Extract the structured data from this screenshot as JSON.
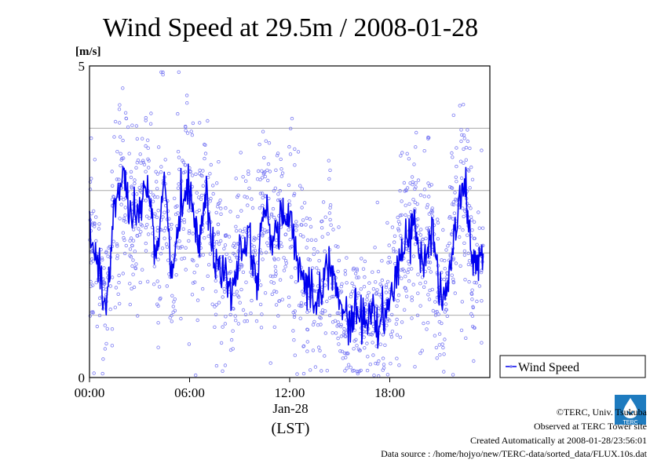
{
  "chart_data": {
    "type": "line",
    "title": "Wind Speed at 29.5m / 2008-01-28",
    "ylabel": "[m/s]",
    "xlabel": "(LST)",
    "date_label": "Jan-28",
    "ylim": [
      0,
      5
    ],
    "y_ticks": [
      0,
      5
    ],
    "y_gridlines": [
      1,
      2,
      3,
      4
    ],
    "x_ticks": [
      "00:00",
      "06:00",
      "12:00",
      "18:00"
    ],
    "xlim_hours": [
      0,
      24
    ],
    "grid": true,
    "legend_placement": "bottom-right-outside",
    "series": [
      {
        "name": "Wind Speed",
        "color": "#0000ee",
        "scatter_color": "#7b7bf3",
        "x": [
          0,
          0.5,
          1,
          1.5,
          2,
          2.5,
          3,
          3.5,
          4,
          4.5,
          5,
          5.5,
          6,
          6.5,
          7,
          7.5,
          8,
          8.5,
          9,
          9.5,
          10,
          10.5,
          11,
          11.5,
          12,
          12.5,
          13,
          13.5,
          14,
          14.5,
          15,
          15.5,
          16,
          16.5,
          17,
          17.5,
          18,
          18.5,
          19,
          19.5,
          20,
          20.5,
          21,
          21.5,
          22,
          22.5,
          23,
          23.5
        ],
        "values": [
          2.4,
          1.8,
          1.1,
          2.7,
          3.3,
          2.4,
          2.6,
          3.2,
          2.0,
          3.1,
          1.6,
          2.8,
          3.1,
          2.2,
          3.0,
          1.7,
          1.9,
          1.4,
          2.0,
          2.4,
          1.6,
          2.7,
          2.2,
          2.6,
          2.5,
          1.8,
          1.6,
          1.2,
          1.6,
          1.9,
          1.1,
          0.9,
          1.1,
          0.9,
          1.0,
          0.8,
          1.2,
          1.7,
          2.3,
          2.5,
          1.7,
          2.4,
          1.3,
          1.5,
          2.5,
          3.2,
          1.7,
          2.0
        ]
      }
    ]
  },
  "legend": {
    "label": "Wind Speed"
  },
  "footer": {
    "copyright": "©TERC, Univ. Tsukuba",
    "observed": "Observed at TERC Tower site",
    "created": "Created Automatically at 2008-01-28/23:56:01",
    "source": "Data source : /home/hojyo/new/TERC-data/sorted_data/FLUX.10s.dat"
  },
  "logo": {
    "text": "TERC",
    "color": "#1e7bbf"
  }
}
